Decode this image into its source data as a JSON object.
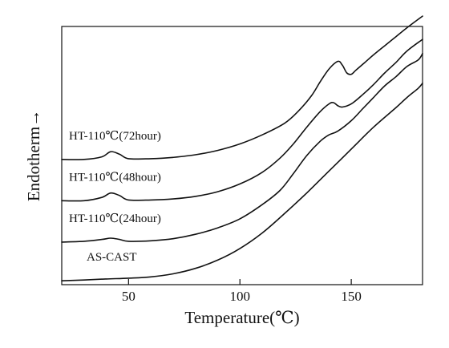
{
  "chart_data": {
    "type": "line",
    "title": "",
    "xlabel": "Temperature(℃)",
    "ylabel": "Endotherm→",
    "xlim": [
      20,
      182
    ],
    "ylim": [
      0,
      100
    ],
    "xticks": [
      50,
      100,
      150
    ],
    "grid": false,
    "legend": "inline labels at left of each curve",
    "series": [
      {
        "name": "HT-110℃(72hour)",
        "x": [
          20,
          30,
          38,
          42,
          46,
          50,
          60,
          70,
          80,
          90,
          100,
          110,
          120,
          126,
          132,
          136,
          140,
          144,
          146,
          148,
          150,
          152,
          156,
          160,
          165,
          170,
          175,
          182
        ],
        "y": [
          48.5,
          48.5,
          49.5,
          51.5,
          50.5,
          48.8,
          48.8,
          49.3,
          50.3,
          52.0,
          54.5,
          58.0,
          62.5,
          67.0,
          73.0,
          78.5,
          83.5,
          86.5,
          85.0,
          82.0,
          81.5,
          83.0,
          86.0,
          89.0,
          92.5,
          96.0,
          99.5,
          104.0
        ]
      },
      {
        "name": "HT-110℃(48hour)",
        "x": [
          20,
          30,
          38,
          42,
          46,
          50,
          60,
          70,
          80,
          90,
          100,
          110,
          118,
          124,
          130,
          136,
          140,
          142,
          144,
          146,
          150,
          155,
          160,
          165,
          170,
          175,
          182
        ],
        "y": [
          32.5,
          32.5,
          33.8,
          35.5,
          34.5,
          32.8,
          32.8,
          33.2,
          34.2,
          36.0,
          39.0,
          43.5,
          49.0,
          54.5,
          61.0,
          67.0,
          70.0,
          70.5,
          69.3,
          68.8,
          70.0,
          73.5,
          77.5,
          82.0,
          86.0,
          90.5,
          95.0
        ]
      },
      {
        "name": "HT-110℃(24hour)",
        "x": [
          20,
          30,
          38,
          42,
          46,
          50,
          60,
          70,
          80,
          90,
          100,
          110,
          118,
          124,
          130,
          136,
          140,
          144,
          150,
          155,
          160,
          165,
          170,
          175,
          180,
          182
        ],
        "y": [
          16.5,
          16.8,
          17.5,
          18.0,
          17.5,
          16.8,
          17.0,
          17.8,
          19.5,
          22.0,
          25.5,
          31.0,
          36.5,
          43.0,
          50.0,
          55.5,
          58.0,
          59.5,
          63.5,
          68.0,
          72.5,
          77.0,
          80.5,
          84.5,
          87.0,
          89.5
        ]
      },
      {
        "name": "AS-CAST",
        "x": [
          20,
          30,
          40,
          50,
          60,
          70,
          80,
          90,
          100,
          110,
          120,
          130,
          140,
          150,
          160,
          170,
          175,
          180,
          182
        ],
        "y": [
          1.5,
          1.8,
          2.2,
          2.5,
          3.0,
          4.2,
          6.3,
          9.5,
          14.0,
          20.0,
          27.5,
          35.5,
          44.0,
          52.5,
          61.0,
          68.5,
          72.5,
          76.0,
          78.0
        ]
      }
    ]
  }
}
